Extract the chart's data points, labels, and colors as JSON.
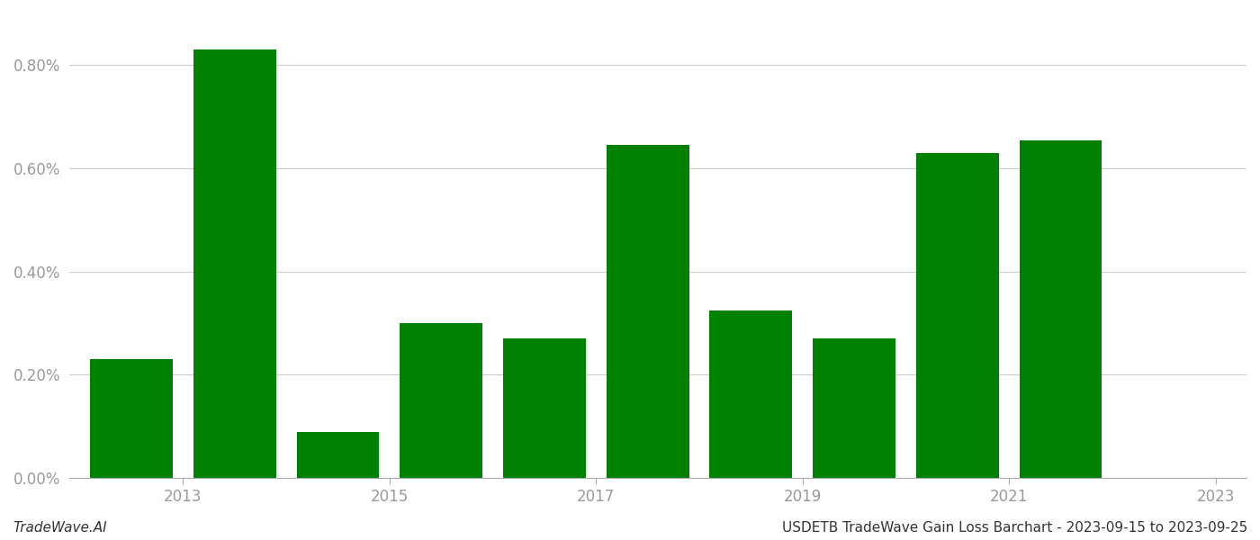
{
  "years": [
    2013,
    2014,
    2015,
    2016,
    2017,
    2018,
    2019,
    2020,
    2021,
    2022
  ],
  "values": [
    0.0023,
    0.0083,
    0.0009,
    0.003,
    0.0027,
    0.00645,
    0.00325,
    0.0027,
    0.0063,
    0.00655
  ],
  "bar_color": "#008000",
  "background_color": "#ffffff",
  "grid_color": "#cccccc",
  "axis_label_color": "#999999",
  "footer_left": "TradeWave.AI",
  "footer_right": "USDETB TradeWave Gain Loss Barchart - 2023-09-15 to 2023-09-25",
  "footer_fontsize": 11,
  "ylim": [
    0,
    0.009
  ],
  "ytick_values": [
    0.0,
    0.002,
    0.004,
    0.006,
    0.008
  ],
  "bar_width": 0.8,
  "figsize": [
    14.0,
    6.0
  ],
  "dpi": 100
}
